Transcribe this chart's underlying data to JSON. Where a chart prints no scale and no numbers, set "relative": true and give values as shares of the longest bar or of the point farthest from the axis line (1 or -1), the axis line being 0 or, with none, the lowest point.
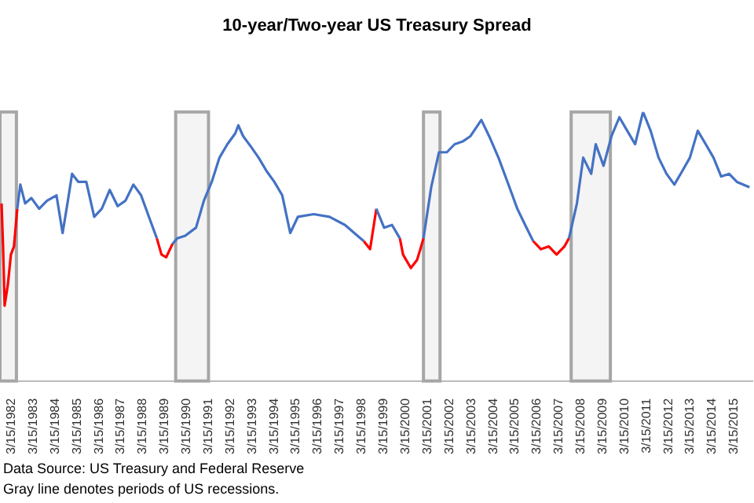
{
  "chart_data": {
    "type": "line",
    "title": "10-year/Two-year US Treasury Spread",
    "relative": true,
    "x": [
      "1981-10-01",
      "1981-10-26",
      "1981-11-21",
      "1982-01-15",
      "1982-03-06",
      "1982-04-26",
      "1982-06-20",
      "1982-08-10",
      "1982-10-29",
      "1983-02-10",
      "1983-06-20",
      "1983-10-29",
      "1984-04-04",
      "1984-07-15",
      "1984-10-04",
      "1984-12-20",
      "1985-04-04",
      "1985-08-14",
      "1985-12-24",
      "1986-04-29",
      "1986-09-09",
      "1987-01-19",
      "1987-05-29",
      "1987-10-08",
      "1988-02-14",
      "1988-06-24",
      "1988-11-03",
      "1989-01-19",
      "1989-04-08",
      "1989-07-23",
      "1989-10-08",
      "1990-02-18",
      "1990-08-18",
      "1990-12-27",
      "1991-05-07",
      "1991-09-13",
      "1992-01-23",
      "1992-06-02",
      "1992-07-23",
      "1992-10-12",
      "1993-02-21",
      "1993-06-27",
      "1993-11-07",
      "1994-03-16",
      "1994-07-26",
      "1994-12-06",
      "1995-04-12",
      "1996-01-01",
      "1996-09-20",
      "1997-06-06",
      "1998-01-01",
      "1998-04-15",
      "1998-07-30",
      "1998-11-11",
      "1999-03-20",
      "1999-07-30",
      "1999-12-09",
      "2000-01-30",
      "2000-06-09",
      "2000-09-20",
      "2000-11-14",
      "2001-01-05",
      "2001-05-14",
      "2001-09-20",
      "2002-01-30",
      "2002-06-09",
      "2002-10-19",
      "2003-02-28",
      "2003-08-28",
      "2004-01-05",
      "2004-06-09",
      "2004-12-09",
      "2005-04-19",
      "2005-08-28",
      "2006-01-08",
      "2006-05-18",
      "2006-09-27",
      "2007-02-03",
      "2007-06-13",
      "2007-08-28",
      "2008-01-08",
      "2008-04-22",
      "2008-09-02",
      "2008-11-17",
      "2009-03-27",
      "2009-08-07",
      "2009-12-16",
      "2010-04-26",
      "2010-09-05",
      "2011-01-15",
      "2011-05-21",
      "2011-10-01",
      "2012-02-10",
      "2012-06-20",
      "2012-10-29",
      "2013-03-06",
      "2013-07-15",
      "2013-11-25",
      "2014-04-04",
      "2014-08-10",
      "2014-12-20",
      "2015-04-29",
      "2015-11-25"
    ],
    "series": [
      {
        "color": "#4472c4",
        "values": [
          null,
          null,
          null,
          null,
          null,
          null,
          0.64,
          0.73,
          0.66,
          0.68,
          0.64,
          0.67,
          0.69,
          0.55,
          0.66,
          0.77,
          0.74,
          0.74,
          0.61,
          0.64,
          0.71,
          0.65,
          0.67,
          0.73,
          0.69,
          0.61,
          0.53,
          null,
          null,
          0.51,
          0.53,
          0.54,
          0.57,
          0.67,
          0.74,
          0.83,
          0.88,
          0.92,
          0.95,
          0.91,
          0.87,
          0.83,
          0.78,
          0.74,
          0.69,
          0.55,
          0.61,
          0.62,
          0.61,
          0.58,
          0.54,
          0.52,
          null,
          0.64,
          0.57,
          0.58,
          0.53,
          null,
          null,
          null,
          null,
          0.53,
          0.72,
          0.85,
          0.85,
          0.88,
          0.89,
          0.91,
          0.97,
          0.91,
          0.83,
          0.72,
          0.64,
          0.58,
          0.52,
          null,
          null,
          null,
          null,
          0.53,
          0.66,
          0.83,
          0.77,
          0.88,
          0.8,
          0.91,
          0.98,
          0.93,
          0.88,
          1.0,
          0.93,
          0.83,
          0.77,
          0.73,
          0.78,
          0.83,
          0.93,
          0.88,
          0.83,
          0.76,
          0.77,
          0.74,
          0.72
        ]
      },
      {
        "color": "#ff0000",
        "values": [
          0.66,
          0.5,
          0.28,
          0.36,
          0.47,
          0.5,
          0.64,
          null,
          null,
          null,
          null,
          null,
          null,
          null,
          null,
          null,
          null,
          null,
          null,
          null,
          null,
          null,
          null,
          null,
          null,
          null,
          0.53,
          0.47,
          0.46,
          0.51,
          null,
          null,
          null,
          null,
          null,
          null,
          null,
          null,
          null,
          null,
          null,
          null,
          null,
          null,
          null,
          null,
          null,
          null,
          null,
          null,
          null,
          0.52,
          0.49,
          0.64,
          null,
          null,
          0.53,
          0.47,
          0.42,
          0.45,
          0.49,
          0.53,
          null,
          null,
          null,
          null,
          null,
          null,
          null,
          null,
          null,
          null,
          null,
          null,
          0.52,
          0.49,
          0.5,
          0.47,
          0.5,
          0.53,
          null,
          null,
          null,
          null,
          null,
          null,
          null,
          null,
          null,
          null,
          null,
          null,
          null,
          null,
          null,
          null,
          null,
          null,
          null,
          null,
          null,
          null,
          null
        ]
      }
    ],
    "xlim": [
      "1981-09-05",
      "2016-01-19"
    ],
    "xticks": [
      {
        "value": "1982-03-15",
        "label": "3/15/1982"
      },
      {
        "value": "1983-03-15",
        "label": "3/15/1983"
      },
      {
        "value": "1984-03-15",
        "label": "3/15/1984"
      },
      {
        "value": "1985-03-15",
        "label": "3/15/1985"
      },
      {
        "value": "1986-03-15",
        "label": "3/15/1986"
      },
      {
        "value": "1987-03-15",
        "label": "3/15/1987"
      },
      {
        "value": "1988-03-15",
        "label": "3/15/1988"
      },
      {
        "value": "1989-03-15",
        "label": "3/15/1989"
      },
      {
        "value": "1990-03-15",
        "label": "3/15/1990"
      },
      {
        "value": "1991-03-15",
        "label": "3/15/1991"
      },
      {
        "value": "1992-03-15",
        "label": "3/15/1992"
      },
      {
        "value": "1993-03-15",
        "label": "3/15/1993"
      },
      {
        "value": "1994-03-15",
        "label": "3/15/1994"
      },
      {
        "value": "1995-03-15",
        "label": "3/15/1995"
      },
      {
        "value": "1996-03-15",
        "label": "3/15/1996"
      },
      {
        "value": "1997-03-15",
        "label": "3/15/1997"
      },
      {
        "value": "1998-03-15",
        "label": "3/15/1998"
      },
      {
        "value": "1999-03-15",
        "label": "3/15/1999"
      },
      {
        "value": "2000-03-15",
        "label": "3/15/2000"
      },
      {
        "value": "2001-03-15",
        "label": "3/15/2001"
      },
      {
        "value": "2002-03-15",
        "label": "3/15/2002"
      },
      {
        "value": "2003-03-15",
        "label": "3/15/2003"
      },
      {
        "value": "2004-03-15",
        "label": "3/15/2004"
      },
      {
        "value": "2005-03-15",
        "label": "3/15/2005"
      },
      {
        "value": "2006-03-15",
        "label": "3/15/2006"
      },
      {
        "value": "2007-03-15",
        "label": "3/15/2007"
      },
      {
        "value": "2008-03-15",
        "label": "3/15/2008"
      },
      {
        "value": "2009-03-15",
        "label": "3/15/2009"
      },
      {
        "value": "2010-03-15",
        "label": "3/15/2010"
      },
      {
        "value": "2011-03-15",
        "label": "3/15/2011"
      },
      {
        "value": "2012-03-15",
        "label": "3/15/2012"
      },
      {
        "value": "2013-03-15",
        "label": "3/15/2013"
      },
      {
        "value": "2014-03-15",
        "label": "3/15/2014"
      },
      {
        "value": "2015-03-15",
        "label": "3/15/2015"
      }
    ],
    "bands": [
      {
        "axis": "x",
        "from": "1981-09-05",
        "to": "1982-06-06",
        "color": "#a6a6a6"
      },
      {
        "axis": "x",
        "from": "1989-09-13",
        "to": "1991-03-14",
        "color": "#a6a6a6"
      },
      {
        "axis": "x",
        "from": "2001-01-05",
        "to": "2001-10-08",
        "color": "#a6a6a6"
      },
      {
        "axis": "x",
        "from": "2007-10-04",
        "to": "2009-07-19",
        "color": "#a6a6a6"
      }
    ],
    "annotations": [
      "Data Source: US Treasury and Federal Reserve",
      "Gray line denotes periods of US recessions."
    ]
  }
}
